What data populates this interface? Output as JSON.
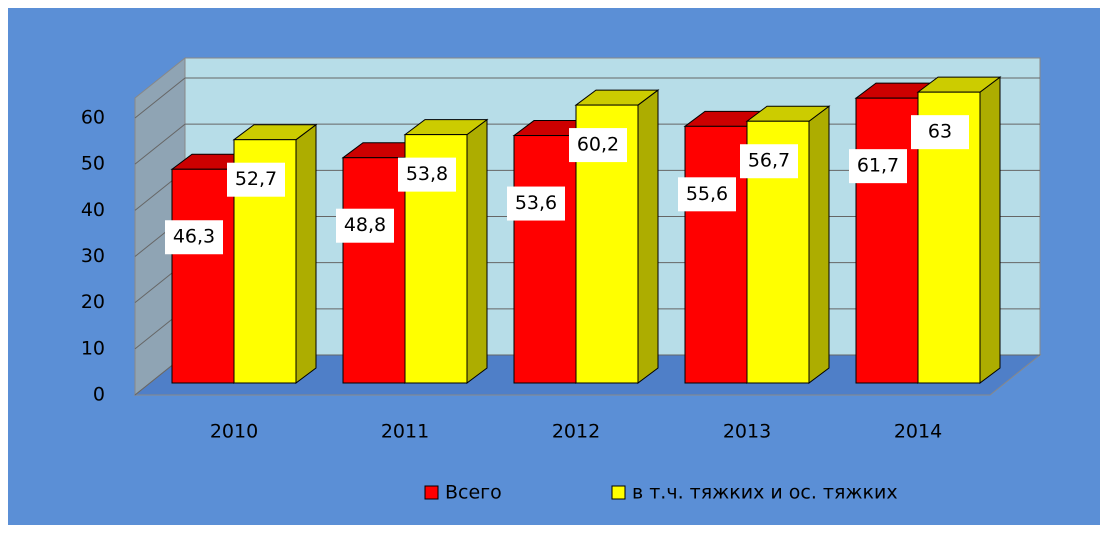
{
  "chart_data": {
    "type": "bar3d",
    "categories": [
      "2010",
      "2011",
      "2012",
      "2013",
      "2014"
    ],
    "series": [
      {
        "name": "Всего",
        "color": "#ff0000",
        "values": [
          46.3,
          48.8,
          53.6,
          55.6,
          61.7
        ],
        "value_labels": [
          "46,3",
          "48,8",
          "53,6",
          "55,6",
          "61,7"
        ]
      },
      {
        "name": "в т.ч. тяжких и ос. тяжких",
        "color": "#ffff00",
        "values": [
          52.7,
          53.8,
          60.2,
          56.7,
          63
        ],
        "value_labels": [
          "52,7",
          "53,8",
          "60,2",
          "56,7",
          "63"
        ]
      }
    ],
    "ylim": [
      0,
      60
    ],
    "yticks": [
      0,
      10,
      20,
      30,
      40,
      50,
      60
    ],
    "grid": true,
    "legend": "bottom"
  }
}
